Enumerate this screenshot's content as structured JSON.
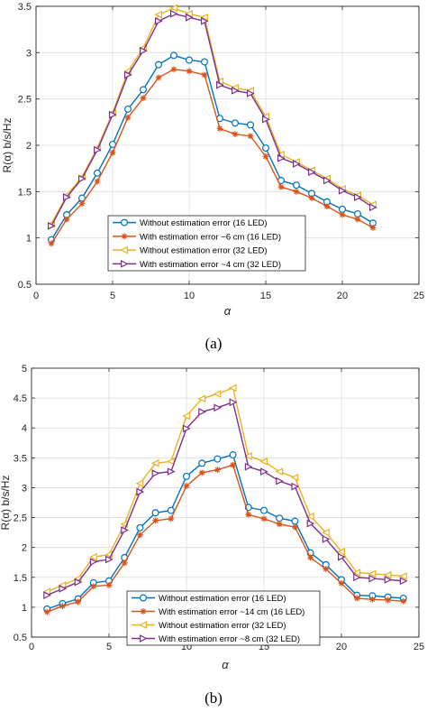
{
  "chart_data": [
    {
      "type": "line",
      "panel_caption": "(a)",
      "xlabel": "α",
      "ylabel": "R(α)  b/s/Hz",
      "xlim": [
        0,
        25
      ],
      "ylim": [
        0.5,
        3.5
      ],
      "xticks": [
        0,
        5,
        10,
        15,
        20,
        25
      ],
      "yticks": [
        0.5,
        1,
        1.5,
        2,
        2.5,
        3,
        3.5
      ],
      "grid": true,
      "legend_position": "lower-center",
      "x": [
        1,
        2,
        3,
        4,
        5,
        6,
        7,
        8,
        9,
        10,
        11,
        12,
        13,
        14,
        15,
        16,
        17,
        18,
        19,
        20,
        21,
        22
      ],
      "series": [
        {
          "name": "Without estimation error (16 LED)",
          "color": "#0072BD",
          "marker": "circle",
          "values": [
            0.98,
            1.25,
            1.43,
            1.7,
            2.01,
            2.39,
            2.6,
            2.87,
            2.97,
            2.92,
            2.9,
            2.29,
            2.24,
            2.22,
            1.97,
            1.62,
            1.57,
            1.48,
            1.39,
            1.31,
            1.26,
            1.16
          ]
        },
        {
          "name": "With estimation error ~6 cm (16 LED)",
          "color": "#D95319",
          "marker": "asterisk",
          "values": [
            0.94,
            1.2,
            1.37,
            1.61,
            1.92,
            2.3,
            2.51,
            2.73,
            2.82,
            2.8,
            2.76,
            2.18,
            2.12,
            2.1,
            1.88,
            1.55,
            1.5,
            1.43,
            1.34,
            1.25,
            1.2,
            1.11
          ]
        },
        {
          "name": "Without estimation error (32 LED)",
          "color": "#EDB120",
          "marker": "triangle-left",
          "values": [
            1.15,
            1.46,
            1.66,
            1.97,
            2.35,
            2.8,
            3.05,
            3.41,
            3.48,
            3.42,
            3.38,
            2.69,
            2.62,
            2.59,
            2.31,
            1.9,
            1.82,
            1.73,
            1.64,
            1.53,
            1.46,
            1.36
          ]
        },
        {
          "name": "With estimation error ~4 cm (32 LED)",
          "color": "#7E2F8E",
          "marker": "triangle-right",
          "values": [
            1.13,
            1.44,
            1.64,
            1.95,
            2.33,
            2.76,
            3.02,
            3.34,
            3.42,
            3.38,
            3.34,
            2.65,
            2.59,
            2.56,
            2.28,
            1.86,
            1.8,
            1.71,
            1.62,
            1.51,
            1.44,
            1.33
          ]
        }
      ]
    },
    {
      "type": "line",
      "panel_caption": "(b)",
      "xlabel": "α",
      "ylabel": "R(α)  b/s/Hz",
      "xlim": [
        0,
        25
      ],
      "ylim": [
        0.5,
        5
      ],
      "xticks": [
        0,
        5,
        10,
        15,
        20,
        25
      ],
      "yticks": [
        0.5,
        1,
        1.5,
        2,
        2.5,
        3,
        3.5,
        4,
        4.5,
        5
      ],
      "grid": true,
      "legend_position": "lower-center",
      "x": [
        1,
        2,
        3,
        4,
        5,
        6,
        7,
        8,
        9,
        10,
        11,
        12,
        13,
        14,
        15,
        16,
        17,
        18,
        19,
        20,
        21,
        22,
        23,
        24
      ],
      "series": [
        {
          "name": "Without estimation error (16 LED)",
          "color": "#0072BD",
          "marker": "circle",
          "values": [
            0.97,
            1.06,
            1.14,
            1.41,
            1.44,
            1.83,
            2.33,
            2.58,
            2.62,
            3.19,
            3.41,
            3.48,
            3.55,
            2.67,
            2.62,
            2.49,
            2.44,
            1.91,
            1.71,
            1.46,
            1.2,
            1.19,
            1.17,
            1.15
          ]
        },
        {
          "name": "With estimation error ~14 cm (16 LED)",
          "color": "#D95319",
          "marker": "asterisk",
          "values": [
            0.92,
            1.02,
            1.09,
            1.35,
            1.37,
            1.74,
            2.21,
            2.45,
            2.48,
            3.03,
            3.25,
            3.3,
            3.38,
            2.55,
            2.48,
            2.39,
            2.34,
            1.83,
            1.64,
            1.4,
            1.15,
            1.13,
            1.12,
            1.1
          ]
        },
        {
          "name": "Without estimation error (32 LED)",
          "color": "#EDB120",
          "marker": "triangle-left",
          "values": [
            1.26,
            1.37,
            1.48,
            1.84,
            1.88,
            2.39,
            3.07,
            3.41,
            3.44,
            4.2,
            4.49,
            4.57,
            4.67,
            3.53,
            3.44,
            3.27,
            3.17,
            2.52,
            2.25,
            1.93,
            1.58,
            1.56,
            1.54,
            1.52
          ]
        },
        {
          "name": "With estimation error ~8 cm (32 LED)",
          "color": "#7E2F8E",
          "marker": "triangle-right",
          "values": [
            1.2,
            1.31,
            1.42,
            1.76,
            1.8,
            2.29,
            2.93,
            3.24,
            3.27,
            3.99,
            4.27,
            4.34,
            4.43,
            3.35,
            3.27,
            3.11,
            3.02,
            2.4,
            2.14,
            1.84,
            1.5,
            1.48,
            1.46,
            1.44
          ]
        }
      ]
    }
  ]
}
